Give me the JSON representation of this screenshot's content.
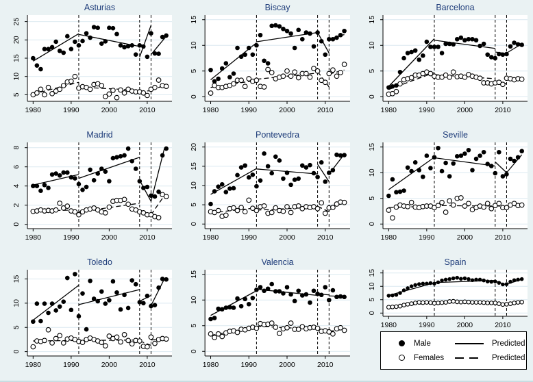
{
  "figure": {
    "background": "#eaf2f3",
    "plot_background": "#ffffff",
    "title_color": "#1f3d7a",
    "grid_color": "#dbe9f0",
    "axis_color": "#000000",
    "years": [
      1980,
      1981,
      1982,
      1983,
      1984,
      1985,
      1986,
      1987,
      1988,
      1989,
      1990,
      1991,
      1992,
      1993,
      1994,
      1995,
      1996,
      1997,
      1998,
      1999,
      2000,
      2001,
      2002,
      2003,
      2004,
      2005,
      2006,
      2007,
      2008,
      2009,
      2010,
      2011,
      2012,
      2013,
      2014,
      2015
    ],
    "xticks": [
      1980,
      1990,
      2000,
      2010
    ],
    "xlim": [
      1978.5,
      2016.5
    ],
    "vlines": [
      1992,
      2008,
      2011
    ]
  },
  "legend": {
    "male_label": "Male",
    "female_label": "Females",
    "pred_solid_label": "Predicted",
    "pred_dash_label": "Predicted"
  },
  "chart_data": [
    {
      "type": "scatter",
      "title": "Asturias",
      "ylim": [
        3.2,
        26.8
      ],
      "yticks": [
        5,
        10,
        15,
        20,
        25
      ],
      "male_values": [
        15,
        13,
        12,
        17.5,
        17.5,
        18,
        19.5,
        17,
        16.5,
        21,
        17.5,
        19.5,
        18.5,
        19.7,
        21.8,
        20.6,
        23.5,
        23.3,
        19,
        19.6,
        23.3,
        23.2,
        21.6,
        18.5,
        18,
        18.3,
        18.5,
        16,
        18.5,
        18.2,
        15.4,
        21.8,
        16.3,
        16.2,
        20.8,
        21.2
      ],
      "female_values": [
        5,
        5.5,
        6.5,
        5,
        7,
        5.3,
        6,
        6.5,
        7.5,
        8.5,
        8.7,
        10,
        6.8,
        7.2,
        7,
        6.5,
        7.8,
        8,
        7.5,
        4.5,
        5.2,
        6.2,
        4.2,
        6.3,
        5.5,
        6.5,
        6,
        5.8,
        5.8,
        5.5,
        4.8,
        6.5,
        7,
        9,
        7.5,
        7.3
      ],
      "pred_male_segments": [
        [
          1980,
          14.2,
          1992,
          21.7
        ],
        [
          1992,
          21.5,
          2008,
          18.2
        ],
        [
          2008,
          15.3,
          2011,
          24
        ],
        [
          2011,
          16,
          2015,
          21
        ]
      ],
      "pred_female_segments": [
        [
          1980,
          5.2,
          1992,
          8.4
        ],
        [
          1992,
          7.1,
          2008,
          6.2
        ],
        [
          2008,
          5.9,
          2011,
          6.1
        ],
        [
          2011,
          6.4,
          2015,
          7.6
        ]
      ]
    },
    {
      "type": "scatter",
      "title": "Biscay",
      "ylim": [
        -0.9,
        15.9
      ],
      "yticks": [
        0,
        5,
        10,
        15
      ],
      "male_values": [
        5.2,
        3,
        3.5,
        5.5,
        6.5,
        3.8,
        4.5,
        9.5,
        7.8,
        8.2,
        9.5,
        8.2,
        10,
        12,
        7,
        6.5,
        13.8,
        13.9,
        13.7,
        13.2,
        12.8,
        12.3,
        9.5,
        13,
        11.2,
        12.5,
        12.3,
        9.8,
        12.5,
        10.8,
        8.2,
        11.2,
        11.2,
        11.5,
        12,
        12.8
      ],
      "female_values": [
        0.7,
        2.2,
        1.8,
        1.8,
        2,
        2.2,
        2.5,
        3.2,
        3.2,
        2,
        3.5,
        3,
        3.2,
        2,
        1.9,
        5.3,
        4.7,
        3.5,
        3.8,
        4,
        5,
        4,
        4.8,
        3.7,
        4.5,
        4.5,
        3.8,
        5.5,
        5,
        3.2,
        2.8,
        4.5,
        5.2,
        4,
        4.7,
        6.3
      ],
      "pred_male_segments": [
        [
          1980,
          3.3,
          1992,
          10.5
        ],
        [
          1992,
          10.7,
          2008,
          12.5
        ],
        [
          2008,
          12.5,
          2011,
          8.5
        ],
        [
          2011,
          11.2,
          2015,
          12.1
        ]
      ],
      "pred_female_segments": [
        [
          1980,
          1.8,
          1992,
          3.2
        ],
        [
          1992,
          3.4,
          2008,
          4.6
        ],
        [
          2008,
          4.9,
          2011,
          1.9
        ],
        [
          2011,
          4.4,
          2015,
          5.2
        ]
      ]
    },
    {
      "type": "scatter",
      "title": "Barcelona",
      "ylim": [
        -0.9,
        15.9
      ],
      "yticks": [
        0,
        5,
        10,
        15
      ],
      "male_values": [
        1.8,
        2,
        2.2,
        4.8,
        7.5,
        8.5,
        8.7,
        9,
        7.2,
        8,
        10.7,
        9.7,
        9.7,
        9.7,
        8.5,
        10.3,
        10.3,
        10.2,
        11.2,
        11.5,
        11,
        11.2,
        11.2,
        11,
        9.9,
        10.3,
        8.2,
        7.7,
        7.5,
        8.3,
        8.2,
        8.3,
        9.8,
        10.5,
        10.2,
        10.1
      ],
      "female_values": [
        0.5,
        0.6,
        1,
        2.5,
        3.3,
        3.5,
        3.7,
        4.2,
        4.2,
        4.5,
        4.8,
        4.5,
        4,
        3.8,
        3.8,
        4.2,
        3.8,
        4.8,
        3.9,
        4,
        3.8,
        4.3,
        4,
        3.8,
        3.6,
        2.7,
        2.7,
        2.5,
        2.7,
        2.8,
        2.4,
        3.6,
        3.5,
        3.3,
        3.5,
        3.4
      ],
      "pred_male_segments": [
        [
          1980,
          2,
          1992,
          11.3
        ],
        [
          1992,
          11,
          2008,
          9.4
        ],
        [
          2008,
          8.7,
          2011,
          8.4
        ],
        [
          2011,
          8.5,
          2015,
          10.3
        ]
      ],
      "pred_female_segments": [
        [
          1980,
          1.4,
          1992,
          4.7
        ],
        [
          1992,
          4.3,
          2008,
          3.5
        ],
        [
          2008,
          2.7,
          2011,
          2.6
        ],
        [
          2011,
          3.4,
          2015,
          3.4
        ]
      ]
    },
    {
      "type": "scatter",
      "title": "Madrid",
      "ylim": [
        -0.45,
        8.55
      ],
      "yticks": [
        0,
        2,
        4,
        6,
        8
      ],
      "male_values": [
        4,
        4,
        3.5,
        4.1,
        3.8,
        5.2,
        5.3,
        5.1,
        5.4,
        5.4,
        4.9,
        4.8,
        4.2,
        3.6,
        3.9,
        5.7,
        4.6,
        5.3,
        5.8,
        5.5,
        4.5,
        6.9,
        7,
        7.1,
        7.2,
        7.9,
        6.6,
        5.8,
        4.5,
        3.8,
        3.9,
        3,
        2.9,
        3.4,
        7.2,
        7.9
      ],
      "female_values": [
        1.35,
        1.4,
        1.5,
        1.4,
        1.45,
        1.4,
        1.5,
        2.2,
        1.7,
        1.9,
        1.4,
        1.3,
        1,
        1.3,
        1.5,
        1.6,
        1.7,
        1.5,
        1.3,
        1.2,
        1.8,
        2.4,
        2.5,
        2.5,
        2.6,
        2.1,
        1.6,
        1.5,
        1.3,
        1.2,
        1,
        1,
        0.8,
        0.7,
        3.1,
        2.9
      ],
      "pred_male_segments": [
        [
          1980,
          4.1,
          1992,
          5.2
        ],
        [
          1992,
          4.8,
          2008,
          7
        ],
        [
          2008,
          4.6,
          2011,
          2.4
        ],
        [
          2011,
          2.4,
          2014.5,
          7.9
        ]
      ],
      "pred_female_segments": [
        [
          1980,
          1.4,
          1992,
          1.5
        ],
        [
          1992,
          1.3,
          2008,
          2.2
        ],
        [
          2008,
          1.5,
          2011,
          1
        ],
        [
          2011,
          1,
          2014.5,
          3
        ]
      ]
    },
    {
      "type": "scatter",
      "title": "Pontevedra",
      "ylim": [
        -1.2,
        21.2
      ],
      "yticks": [
        0,
        5,
        10,
        15,
        20
      ],
      "male_values": [
        5.2,
        8.5,
        9.7,
        10.3,
        8.3,
        9.2,
        9.3,
        12.7,
        14.7,
        15.2,
        12.1,
        12.8,
        9.8,
        11.3,
        18.3,
        15,
        13.2,
        17.5,
        16.5,
        11.8,
        13.3,
        10.2,
        11.5,
        11.8,
        15.2,
        14.7,
        15.3,
        13.2,
        12.2,
        16,
        11,
        13.3,
        14,
        18,
        17.8,
        17.9
      ],
      "female_values": [
        3.2,
        3,
        3.5,
        2,
        2.3,
        4,
        4.2,
        3.5,
        4.3,
        3.2,
        6.2,
        4.1,
        3.5,
        4.5,
        4.7,
        2.8,
        3,
        4.2,
        3.5,
        3.3,
        4.5,
        3,
        4.5,
        4.7,
        4,
        4.5,
        4.3,
        4.5,
        4,
        5.5,
        2.8,
        4.2,
        4.3,
        5.2,
        5.7,
        5.6
      ],
      "pred_male_segments": [
        [
          1980,
          7.7,
          1992,
          14.4
        ],
        [
          1992,
          14.3,
          2008,
          13
        ],
        [
          2008,
          15.5,
          2011,
          11
        ],
        [
          2011,
          13,
          2014.5,
          17.5
        ]
      ],
      "pred_female_segments": [
        [
          1980,
          2.9,
          1992,
          4.2
        ],
        [
          1992,
          3.6,
          2008,
          4.4
        ],
        [
          2008,
          4.6,
          2011,
          3.2
        ],
        [
          2011,
          4,
          2014.5,
          5.4
        ]
      ]
    },
    {
      "type": "scatter",
      "title": "Seville",
      "ylim": [
        -0.9,
        15.9
      ],
      "yticks": [
        0,
        5,
        10,
        15
      ],
      "male_values": [
        5.5,
        8.7,
        6.2,
        6.3,
        6.5,
        11,
        10.3,
        12,
        10.5,
        9.2,
        13.3,
        10.9,
        13,
        14.8,
        10.3,
        11.9,
        9.3,
        11.8,
        13.2,
        13.3,
        13.7,
        14.4,
        10.5,
        12.7,
        13.3,
        14,
        11.7,
        11.3,
        9.9,
        14,
        9.3,
        9.7,
        12.7,
        12.3,
        13,
        14.2
      ],
      "female_values": [
        2.7,
        1.2,
        3.3,
        3.7,
        3.5,
        3.4,
        4.2,
        3.3,
        3.2,
        3.4,
        3.5,
        3.5,
        3.2,
        3.6,
        4.2,
        2.3,
        4.5,
        3.7,
        5,
        5.1,
        3.5,
        4,
        2.8,
        3.2,
        3.5,
        3.3,
        4,
        3,
        3.6,
        4,
        3.2,
        3.2,
        3.7,
        4,
        3.6,
        3.7
      ],
      "pred_male_segments": [
        [
          1980,
          6.7,
          1992,
          13
        ],
        [
          1992,
          12.9,
          2008,
          11.3
        ],
        [
          2008,
          12.1,
          2011,
          10
        ],
        [
          2011,
          10,
          2015,
          13.5
        ]
      ],
      "pred_female_segments": [
        [
          1980,
          3.2,
          1992,
          3.5
        ],
        [
          1992,
          3.6,
          2008,
          3.5
        ],
        [
          2008,
          3.6,
          2011,
          3.3
        ],
        [
          2011,
          3.4,
          2015,
          3.7
        ]
      ]
    },
    {
      "type": "scatter",
      "title": "Toledo",
      "ylim": [
        -0.9,
        16.9
      ],
      "yticks": [
        0,
        5,
        10,
        15
      ],
      "male_values": [
        6.2,
        9.9,
        6.3,
        9.9,
        8,
        9.9,
        8.5,
        9.3,
        10.3,
        15.2,
        8.6,
        16,
        7.3,
        12,
        4.6,
        14.6,
        10.9,
        10.4,
        12.4,
        9.9,
        10.6,
        14.5,
        12.2,
        8.7,
        11.7,
        9,
        14.7,
        13.9,
        10.2,
        10,
        11.5,
        9.4,
        9.6,
        13.2,
        15,
        14.9
      ],
      "female_values": [
        1,
        2.2,
        2.1,
        2.3,
        4.5,
        1.8,
        2.7,
        3.3,
        1.8,
        2.6,
        2.8,
        2.5,
        2.1,
        1.9,
        2.5,
        2.8,
        2.5,
        2.2,
        1.9,
        1.2,
        3.2,
        2.7,
        3,
        2,
        3.5,
        2.3,
        1.6,
        2.3,
        2.2,
        1.1,
        1,
        3,
        1.7,
        2.5,
        2.7,
        2.6
      ],
      "pred_male_segments": [
        [
          1980,
          6.5,
          1992,
          13.7
        ],
        [
          1992,
          9.7,
          2008,
          12.8
        ],
        [
          2008,
          10.4,
          2011,
          11.6
        ],
        [
          2011,
          9.5,
          2014.5,
          15
        ]
      ],
      "pred_female_segments": [
        [
          1980,
          2.2,
          1992,
          2.3
        ],
        [
          1992,
          2.3,
          2008,
          2.4
        ],
        [
          2008,
          2.2,
          2011,
          1.3
        ],
        [
          2011,
          2.4,
          2015,
          2.6
        ]
      ]
    },
    {
      "type": "scatter",
      "title": "Valencia",
      "ylim": [
        -0.9,
        15.9
      ],
      "yticks": [
        0,
        5,
        10,
        15
      ],
      "male_values": [
        6.3,
        6.5,
        8.3,
        8.2,
        8.5,
        8.6,
        8.5,
        10.3,
        8.8,
        10.2,
        9.2,
        10.4,
        12,
        12.5,
        11.8,
        12.2,
        13.1,
        11.7,
        11.7,
        11.3,
        12.5,
        11.1,
        9.8,
        11.8,
        10.9,
        11.1,
        9.5,
        11.8,
        11.2,
        11,
        12.5,
        10,
        11.9,
        10.6,
        10.7,
        10.6
      ],
      "female_values": [
        3.4,
        2.7,
        3.4,
        2.9,
        3.6,
        3.9,
        4,
        3.7,
        4.3,
        4.2,
        4.5,
        4.7,
        4.5,
        5.4,
        5.2,
        5.3,
        5.5,
        4.7,
        3.5,
        4.4,
        4.6,
        5.5,
        4.3,
        4.3,
        4.8,
        4.4,
        4.6,
        4.7,
        4.5,
        3.9,
        4,
        3.8,
        3.4,
        4.4,
        4.6,
        4.1
      ],
      "pred_male_segments": [
        [
          1980,
          7,
          1992,
          11.8
        ],
        [
          1992,
          12.1,
          2008,
          10.9
        ],
        [
          2008,
          11.2,
          2011,
          11
        ],
        [
          2011,
          10.8,
          2015,
          10.7
        ]
      ],
      "pred_female_segments": [
        [
          1980,
          3.1,
          1992,
          4.8
        ],
        [
          1992,
          4.9,
          2008,
          4.3
        ],
        [
          2008,
          4.2,
          2011,
          3.8
        ],
        [
          2011,
          3.9,
          2015,
          4.3
        ]
      ]
    },
    {
      "type": "scatter",
      "title": "Spain",
      "compact": true,
      "ylim": [
        -1.2,
        16.2
      ],
      "yticks": [
        0,
        5,
        10,
        15
      ],
      "male_values": [
        6.5,
        6.6,
        6.8,
        7.5,
        8.5,
        9.3,
        10,
        10.5,
        10.8,
        11,
        11,
        11.2,
        11,
        11.5,
        12.2,
        12.5,
        12.7,
        13,
        13.2,
        12.8,
        13,
        12.7,
        12.3,
        12.5,
        12.5,
        12.2,
        11.8,
        11.7,
        11.8,
        11.3,
        10.7,
        10.8,
        11.7,
        12.3,
        12.5,
        12.7
      ],
      "female_values": [
        2.2,
        2.3,
        2.4,
        2.6,
        3,
        3.3,
        3.5,
        3.8,
        4,
        3.9,
        4,
        3.9,
        3.7,
        3.8,
        3.9,
        4,
        4.3,
        4.4,
        4.2,
        4.1,
        4.2,
        4.1,
        4,
        4,
        4,
        3.9,
        3.8,
        3.8,
        3.8,
        3.5,
        3.2,
        3.3,
        3.5,
        3.8,
        4,
        4.1
      ],
      "pred_male_segments": [
        [
          1980,
          6.6,
          1992,
          11.3
        ],
        [
          1992,
          11.4,
          2008,
          12.2
        ],
        [
          2008,
          11.9,
          2011,
          10.6
        ],
        [
          2011,
          10.8,
          2015,
          12.6
        ]
      ],
      "pred_female_segments": [
        [
          1980,
          2.3,
          1992,
          3.9
        ],
        [
          1992,
          3.8,
          2008,
          4
        ],
        [
          2008,
          3.8,
          2011,
          3.2
        ],
        [
          2011,
          3.3,
          2015,
          4
        ]
      ]
    }
  ]
}
